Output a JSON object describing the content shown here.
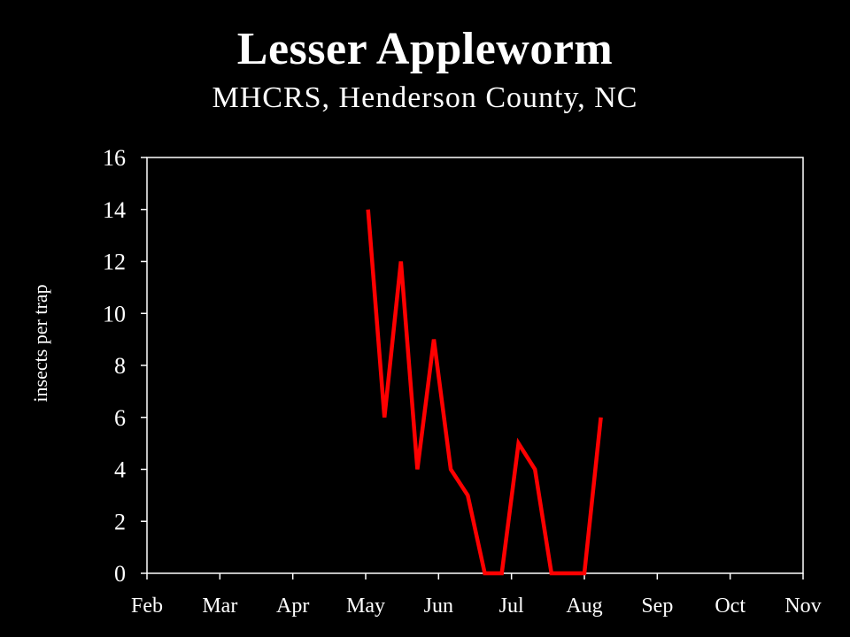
{
  "chart_data": {
    "type": "line",
    "title": "Lesser Appleworm",
    "subtitle": "MHCRS, Henderson County, NC",
    "xlabel": "",
    "ylabel": "insects per trap",
    "x_tick_labels": [
      "Feb",
      "Mar",
      "Apr",
      "May",
      "Jun",
      "Jul",
      "Aug",
      "Sep",
      "Oct",
      "Nov"
    ],
    "y_ticks": [
      0,
      2,
      4,
      6,
      8,
      10,
      12,
      14,
      16
    ],
    "ylim": [
      0,
      16
    ],
    "grid": false,
    "legend": "none",
    "series": [
      {
        "color": "#ff0000",
        "x": [
          "05/02",
          "05/09",
          "05/16",
          "05/23",
          "05/30",
          "06/06",
          "06/13",
          "06/20",
          "06/27",
          "07/04",
          "07/11",
          "07/18",
          "07/25",
          "08/01",
          "08/08"
        ],
        "y": [
          14,
          6,
          12,
          4,
          9,
          4,
          3,
          0,
          0,
          5,
          4,
          0,
          0,
          0,
          6
        ]
      }
    ]
  }
}
